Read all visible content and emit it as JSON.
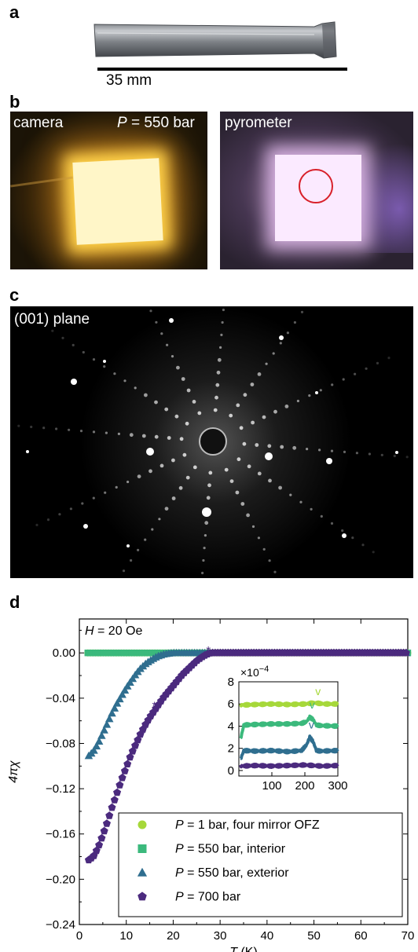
{
  "panels": {
    "a": {
      "letter": "a",
      "scale_bar_label": "35 mm"
    },
    "b": {
      "letter": "b",
      "camera_label": "camera",
      "pressure_label": {
        "symbol": "P",
        "text": " = 550 bar"
      },
      "pyrometer_label": "pyrometer"
    },
    "c": {
      "letter": "c",
      "plane_label": "(001) plane"
    },
    "d": {
      "letter": "d",
      "field_label": {
        "symbol": "H",
        "text": " = 20 Oe"
      }
    }
  },
  "chart_data": [
    {
      "type": "scatter",
      "xlabel": {
        "symbol": "T",
        "unit": " (K)"
      },
      "ylabel": "4πχ",
      "xlim": [
        0,
        70
      ],
      "ylim": [
        -0.24,
        0.03
      ],
      "xticks": [
        "0",
        "10",
        "20",
        "30",
        "40",
        "50",
        "60",
        "70"
      ],
      "yticks": [
        "0.00",
        "-0.04",
        "-0.08",
        "-0.12",
        "-0.16",
        "-0.20",
        "-0.24"
      ],
      "legend_position": "lower-right",
      "series": [
        {
          "name": "P = 1 bar, four mirror OFZ",
          "legend_symbol": "P",
          "legend_text": " = 1 bar, four mirror OFZ",
          "color": "#a6d83a",
          "marker": "circle",
          "x": [
            1.8,
            5,
            10,
            20,
            30,
            40,
            50,
            60,
            70
          ],
          "y": [
            0,
            0,
            0,
            0,
            0,
            0,
            0,
            0,
            0
          ]
        },
        {
          "name": "P = 550 bar, interior",
          "legend_symbol": "P",
          "legend_text": " = 550 bar, interior",
          "color": "#3bb97c",
          "marker": "square",
          "x": [
            1.8,
            5,
            10,
            20,
            30,
            40,
            50,
            60,
            70
          ],
          "y": [
            0,
            0,
            0,
            0,
            0,
            0,
            0,
            0,
            0
          ]
        },
        {
          "name": "P = 550 bar, exterior",
          "legend_symbol": "P",
          "legend_text": " = 550 bar, exterior",
          "color": "#2f6e8f",
          "marker": "triangle",
          "x": [
            2,
            3,
            4,
            5,
            6,
            7,
            8,
            9,
            10,
            11,
            12,
            13,
            14,
            15,
            16,
            17,
            18,
            19,
            20,
            22,
            24,
            26,
            28,
            30,
            40,
            50,
            60,
            70
          ],
          "y": [
            -0.091,
            -0.087,
            -0.08,
            -0.071,
            -0.062,
            -0.053,
            -0.045,
            -0.038,
            -0.031,
            -0.025,
            -0.019,
            -0.014,
            -0.01,
            -0.007,
            -0.0045,
            -0.0025,
            -0.0012,
            -0.0005,
            0,
            0,
            0,
            0,
            0,
            0,
            0,
            0,
            0,
            0
          ]
        },
        {
          "name": "P = 700 bar",
          "legend_symbol": "P",
          "legend_text": " = 700 bar",
          "color": "#4b2a7e",
          "marker": "pentagon",
          "x": [
            2,
            3,
            4,
            5,
            6,
            7,
            8,
            9,
            10,
            11,
            12,
            13,
            14,
            15,
            16,
            17,
            18,
            19,
            20,
            21,
            22,
            23,
            24,
            25,
            26,
            27,
            28,
            30,
            40,
            50,
            60,
            70
          ],
          "y": [
            -0.183,
            -0.18,
            -0.172,
            -0.161,
            -0.149,
            -0.136,
            -0.124,
            -0.112,
            -0.101,
            -0.09,
            -0.081,
            -0.072,
            -0.064,
            -0.057,
            -0.051,
            -0.045,
            -0.039,
            -0.034,
            -0.029,
            -0.024,
            -0.019,
            -0.015,
            -0.011,
            -0.007,
            -0.004,
            -0.0015,
            0,
            0,
            0,
            0,
            0,
            0
          ]
        }
      ],
      "annotations": [
        {
          "text": "*",
          "x": 27.5,
          "y": 0.003,
          "color": "#4b2a7e"
        },
        {
          "text": "*",
          "x": 16,
          "y": -0.046,
          "color": "#4b2a7e"
        }
      ]
    },
    {
      "type": "line",
      "xlim": [
        0,
        300
      ],
      "ylim": [
        -0.5,
        8
      ],
      "y_multiplier": "×10",
      "y_multiplier_exponent": "−4",
      "xticks": [
        "100",
        "200",
        "300"
      ],
      "yticks": [
        "0",
        "2",
        "4",
        "6",
        "8"
      ],
      "series": [
        {
          "name": "P = 1 bar, four mirror OFZ",
          "color": "#a6d83a",
          "offset": 5.9,
          "x": [
            5,
            50,
            100,
            150,
            200,
            215,
            230,
            245,
            260,
            300
          ],
          "y": [
            5.9,
            5.95,
            6.0,
            5.95,
            6.0,
            6.05,
            6.1,
            6.05,
            6.0,
            6.0
          ],
          "peak_marker": "v",
          "peak_x": 240,
          "peak_y": 6.8
        },
        {
          "name": "P = 550 bar, interior",
          "color": "#3bb97c",
          "offset": 4.1,
          "x": [
            5,
            15,
            50,
            100,
            150,
            190,
            205,
            215,
            225,
            235,
            250,
            300
          ],
          "y": [
            2.8,
            4.1,
            4.15,
            4.2,
            4.2,
            4.25,
            4.4,
            4.8,
            4.6,
            4.1,
            4.05,
            4.0
          ],
          "peak_marker": "v",
          "peak_x": 222,
          "peak_y": 5.6
        },
        {
          "name": "P = 550 bar, exterior",
          "color": "#2f6e8f",
          "offset": 1.8,
          "x": [
            5,
            15,
            50,
            100,
            150,
            190,
            205,
            215,
            225,
            235,
            250,
            300
          ],
          "y": [
            1.0,
            1.8,
            1.75,
            1.8,
            1.7,
            1.8,
            2.3,
            3.0,
            2.6,
            1.8,
            1.75,
            1.8
          ],
          "peak_marker": "v",
          "peak_x": 220,
          "peak_y": 3.8
        },
        {
          "name": "P = 700 bar",
          "color": "#4b2a7e",
          "offset": 0.4,
          "x": [
            5,
            50,
            100,
            150,
            200,
            250,
            300
          ],
          "y": [
            0.4,
            0.45,
            0.4,
            0.45,
            0.5,
            0.4,
            0.45
          ]
        }
      ]
    }
  ]
}
